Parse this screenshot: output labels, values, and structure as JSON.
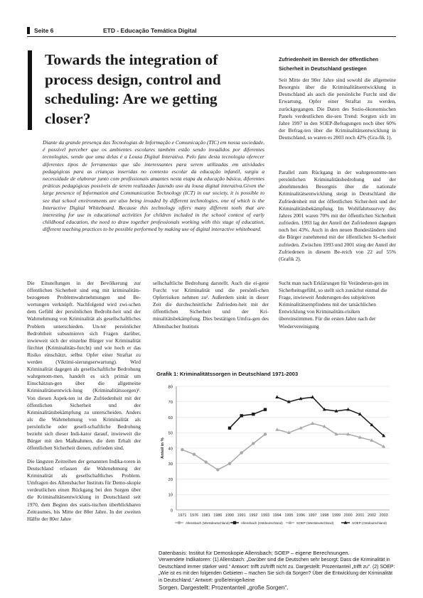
{
  "header": {
    "page_label": "Seite 6",
    "magazine": "ETD - Educação Temática Digital"
  },
  "title": "Towards the integration of process design, control and scheduling: Are we getting closer?",
  "abstract": "Diante da grande presença das Tecnologias de Informação e Comunicação (TIC) em nossa sociedade, é possível perceber que os ambientes escolares também estão sendo invadidos por diferentes tecnologias, sendo que uma delas é a Lousa Digital Interativa. Pelo fato desta tecnologia oferecer diferentes tipos de ferramentas que são interessantes para serem utilizadas em atividades pedagógicas para as crianças inseridas no contexto escolar da educação infantil, surgiu a necessidade de elaborar junto com profissionais atuantes nesta etapa da educação básica, diferentes práticas pedagógicas possíveis de serem realizadas fazendo uso da lousa digital interativa.Given the large presence of Information and Communication Technology (ICT) in our society, it is possible to see that school environments are also being invaded by different technologies, one of which is the Interactive Digital Whiteboard. Because this technology offers many different tools that are interesting for use in educational activities for children included in the school context of early childhood education, the need to draw together professionals working with this stage of education, different teaching practices to be possible performed by making use of digital interactive whiteboard.",
  "right_column": {
    "heading": "Zufriedenheit im Bereich der öffentlichen Sicherheit in Deutschland gestiegen",
    "para1": "Seit Mitte der 90er Jahre sind sowohl die allgemeine Besorgnis über die Kriminalitätsentwicklung in Deutschland als auch die persönliche Furcht und die Erwartung, Opfer einer Straftat zu werden, zurückgegangen. Die Daten des Sozio-ökonomischen Panels verdeutlichen die-sen Trend: Sorgten sich im Jahre 1997 in den SOEP-Befragungen noch über 60% der Befrag-ten über die Kriminalitätsentwicklung in Deutschland, so waren es 2003 noch 42% (Gra-fik 1).",
    "para2": "Parallel zum Rückgang in der wahrgenomme-nen persönlichen Kriminalitätsbedrohung und der abnehmenden Besorgnis über die nationale Kriminalitätsentwicklung steigt in Deutschland die Zufriedenheit mit der öffentlichen Sicher-heit und der Kriminalitätsbekämpfung. Im Wohlfahrtssurvey des Jahres 2001 waren 70% mit der öffentlichen Sicherheit zufrieden. 1993 lag der Anteil der Zufriedenen dagegen noch bei 43%. Auch in den neuen Bundesländern sind die Bürger zunehmend mit der öffentlichen Si-cherheit zufrieden. Zwischen 1993 und 2001 stieg der Anteil der Zufriedenen in diesem Be-reich von 22 auf 55% (Grafik 2)."
  },
  "body": {
    "col1a": "Die Einstellungen in der Bevölkerung zur öffentlichen Sicherheit sind eng mit kriminalitäts-bezogenen Problemwahrnehmungen und Be-wertungen verknüpft. Nachfolgend wird zwi-schen dem Gefühl der persönlichen Bedroht-heit und der Wahrnehmung von Kriminalität als gesellschaftliches Problem unterschieden. Un-ter persönlicher Bedrohtheit subsumieren sich Fragen darüber, inwieweit sich der einzelne Bürger vor Kriminalität fürchtet (Kriminalitäts-furcht) und wie hoch er das Risiko einschätzt, selbst Opfer einer Straftat zu werden (Viktimi-sierungserwartung). Wird Kriminalität dagegen als gesellschaftliche Bedrohung wahrgenom-men, handelt es sich primär um Einschätzun-gen über die allgemeine Kriminalitätsentwick-lung (Kriminalitätssorgen)¹. Von diesen Aspek-ten ist die Zufriedenheit mit der öffentlichen Sicherheit und der Kriminalitätsbekämpfung zu unterscheiden. Anders als die Wahrnehmung von Kriminalität als persönliche oder gesell-schaftliche Bedrohung bezieht sich dieser Indi-kator darauf, inwieweit die Bürger mit den Maßnahmen, die dem Erhalt der öffentlichen Sicherheit dienen, zufrieden sind.",
    "col1b": "Die längsten Zeitreihen der genannten Indika-toren in Deutschland erfassen die Wahrnehmung der Kriminalität als gesellschaftliches Problem. Umfragen des Allensbacher Instituts für Demo-skopie verdeutlichen einen Rückgang bei den Sorgen über die Kriminalitätsentwicklung in Deutschland seit 1970, dem Beginn des statis-tischen überblickbaren Zeitraumes, bis Mitte der 80er Jahre. In der zweiten Hälfte der 80er Jahre",
    "col2": "sellschaftliche Bedrohung darstellt. Auch die ei-gene Furcht vor Kriminalität und die persönli-chen Opferrisiken nehmen zu². Außerdem sinkt in dieser Zeit die durchschnittliche Zufrieden-heit mit der öffentlichen Sicherheit und der Kri-minalitätsbekämpfung. Dies bestätigen Umfra-gen des Allensbacher Instituts",
    "col3": "Sucht man nach Erklärungen für Veränderun-gen im Sicherheitsgefühl, so stellt sich zunächst einmal die Frage, inwieweit Änderungen des subjektiven Kriminalitätsempfindens mit der tatsächlichen Entwicklung von Kriminalitäts-risiken übereinstimmen. Für die ersten Jahre nach der Wiedervereinigung"
  },
  "chart_data": {
    "type": "line",
    "title": "Grafik 1: Kriminalitätssorgen in Deutschland 1971-2003",
    "ylabel": "Anteil in %",
    "ylim": [
      0,
      80
    ],
    "yticks": [
      0,
      10,
      20,
      30,
      40,
      50,
      60,
      70,
      80
    ],
    "x": [
      1971,
      1976,
      1981,
      1986,
      1990,
      1991,
      1992,
      1993,
      1994,
      1995,
      1996,
      1997,
      1998,
      1999,
      2000,
      2001,
      2002,
      2003
    ],
    "grid": true,
    "legend_position": "bottom",
    "series": [
      {
        "name": "Allensbach (Westdeutschland)",
        "color": "#a8a8a8",
        "marker": "circle",
        "values": [
          39,
          36,
          31,
          26,
          30,
          37,
          43,
          49,
          null,
          null,
          null,
          null,
          null,
          null,
          null,
          null,
          null,
          null
        ]
      },
      {
        "name": "Allensbach (Ostdeutschland)",
        "color": "#1a1a1a",
        "marker": "square",
        "values": [
          null,
          null,
          null,
          null,
          53,
          61,
          62,
          65,
          null,
          null,
          null,
          null,
          null,
          null,
          null,
          null,
          null,
          null
        ]
      },
      {
        "name": "SOEP (Westdeutschland)",
        "color": "#a8a8a8",
        "marker": "triangle",
        "values": [
          null,
          null,
          null,
          null,
          null,
          null,
          null,
          null,
          52,
          50,
          53,
          56,
          54,
          49,
          49,
          47,
          45,
          41
        ]
      },
      {
        "name": "SOEP (Ostdeutschland)",
        "color": "#1a1a1a",
        "marker": "triangle",
        "values": [
          null,
          null,
          null,
          null,
          null,
          null,
          null,
          null,
          73,
          70,
          72,
          73,
          65,
          64,
          65,
          62,
          55,
          48
        ]
      }
    ]
  },
  "source": {
    "line1": "Datenbasis: Institut für Demoskopie Allensbach; SOEP – eigene Berechnungen.",
    "line2": "Verwendete Indikatoren: (1) Allensbach: „Darüber sind die Deutschen sehr besorgt: Dass die Kriminalität in Deutschland immer stärker wird.“ Antwort: trifft zu/trifft nicht zu. Dargestellt: Prozentanteil „trifft zu“. (2) SOEP: „Wie ist es mit den folgenden Gebieten – machen Sie sich da Sorgen? Über die Entwicklung der Kriminalität in Deutschland.“ Antwort: große/einige/keine",
    "line3": "Sorgen. Dargestellt: Prozentanteil „große Sorgen“."
  }
}
